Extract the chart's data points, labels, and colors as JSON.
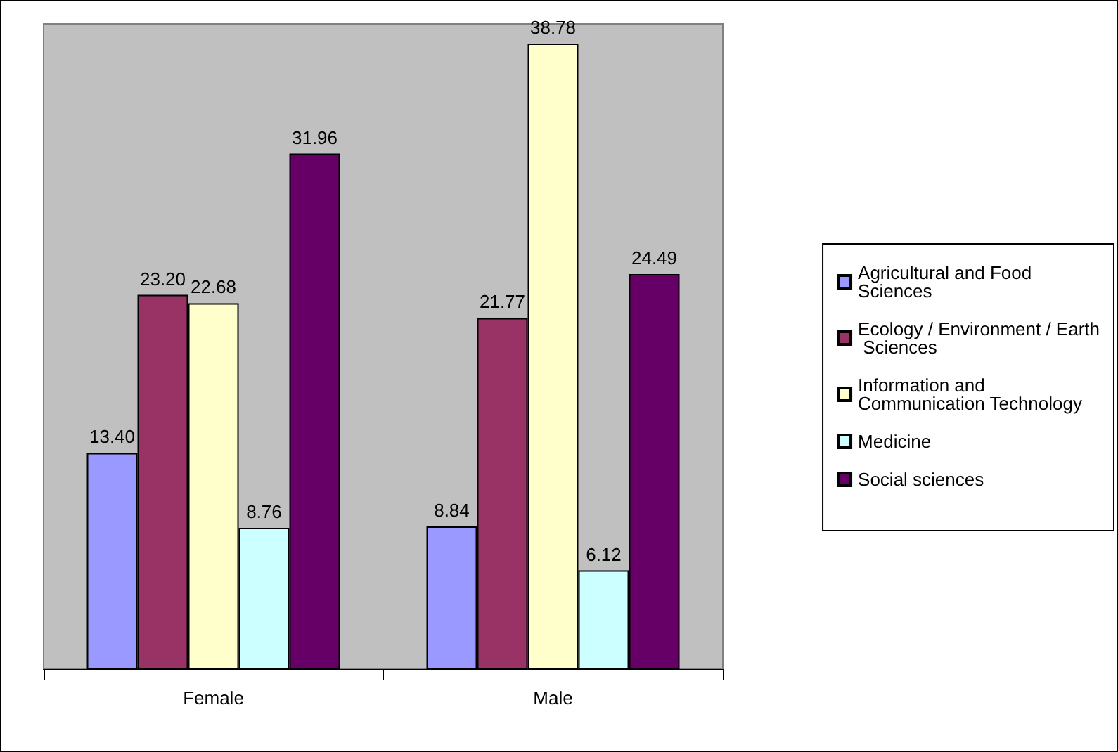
{
  "chart_data": {
    "type": "bar",
    "categories": [
      "Female",
      "Male"
    ],
    "series": [
      {
        "name": "Agricultural and Food Sciences",
        "color": "#9999ff",
        "values": [
          13.4,
          8.84
        ],
        "value_labels": [
          "13.40",
          "8.84"
        ]
      },
      {
        "name": "Ecology / Environment / Earth Sciences",
        "color": "#993366",
        "values": [
          23.2,
          21.77
        ],
        "value_labels": [
          "23.20",
          "21.77"
        ]
      },
      {
        "name": "Information and Communication Technology",
        "color": "#ffffcc",
        "values": [
          22.68,
          38.78
        ],
        "value_labels": [
          "22.68",
          "38.78"
        ]
      },
      {
        "name": "Medicine",
        "color": "#ccffff",
        "values": [
          8.76,
          6.12
        ],
        "value_labels": [
          "8.76",
          "6.12"
        ]
      },
      {
        "name": "Social sciences",
        "color": "#660066",
        "values": [
          31.96,
          24.49
        ],
        "value_labels": [
          "31.96",
          "24.49"
        ]
      }
    ],
    "grid": false,
    "legend": "right"
  }
}
